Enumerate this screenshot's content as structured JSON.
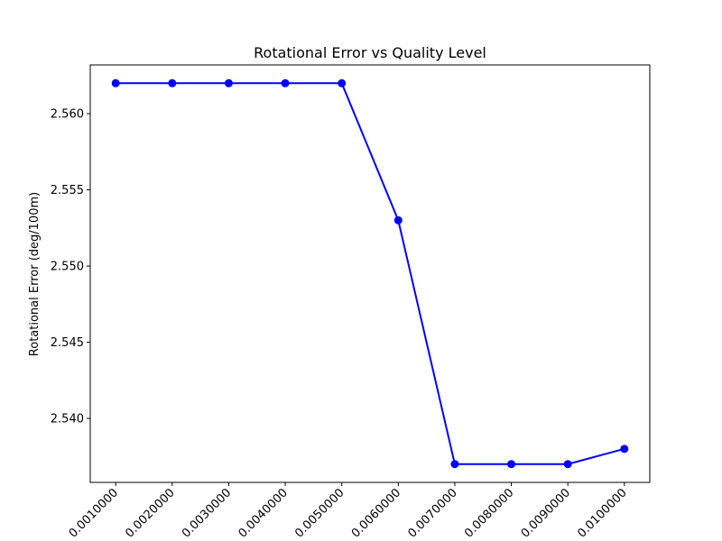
{
  "chart_data": {
    "type": "line",
    "title": "Rotational Error vs Quality Level",
    "xlabel": "",
    "ylabel": "Rotational Error (deg/100m)",
    "x_tick_labels": [
      "0.0010000",
      "0.0020000",
      "0.0030000",
      "0.0040000",
      "0.0050000",
      "0.0060000",
      "0.0070000",
      "0.0080000",
      "0.0090000",
      "0.0100000"
    ],
    "y_tick_labels": [
      "2.540",
      "2.545",
      "2.550",
      "2.555",
      "2.560"
    ],
    "y_ticks": [
      2.54,
      2.545,
      2.55,
      2.555,
      2.56
    ],
    "xlim": [
      0.00055,
      0.01045
    ],
    "ylim": [
      2.5358,
      2.5632
    ],
    "grid": false,
    "series": [
      {
        "color": "#0000ff",
        "marker": "circle",
        "x": [
          0.001,
          0.002,
          0.003,
          0.004,
          0.005,
          0.006,
          0.007,
          0.008,
          0.009,
          0.01
        ],
        "values": [
          2.562,
          2.562,
          2.562,
          2.562,
          2.562,
          2.553,
          2.537,
          2.537,
          2.537,
          2.538
        ]
      }
    ]
  }
}
